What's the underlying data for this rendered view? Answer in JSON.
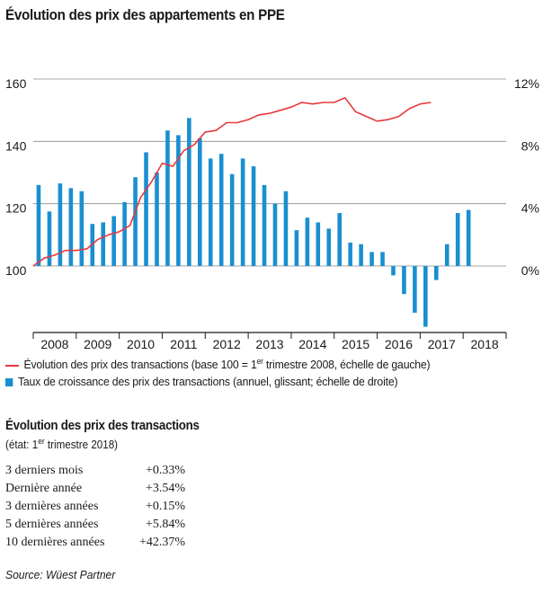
{
  "title": "Évolution des prix des appartements en PPE",
  "chart_data": {
    "type": "bar+line",
    "x_labels": [
      "2008",
      "2009",
      "2010",
      "2011",
      "2012",
      "2013",
      "2014",
      "2015",
      "2016",
      "2017",
      "2018"
    ],
    "y_left": {
      "ticks": [
        "160",
        "140",
        "120",
        "100"
      ],
      "range": [
        80,
        160
      ]
    },
    "y_right": {
      "ticks": [
        "12%",
        "8%",
        "4%",
        "0%"
      ],
      "range": [
        -4,
        12
      ]
    },
    "colors": {
      "line": "#e8383b",
      "bar": "#1a8fd0"
    },
    "series": [
      {
        "name": "Évolution des prix des transactions (base 100 = 1er trimestre 2008, échelle de gauche)",
        "kind": "line",
        "axis": "left",
        "values": [
          100,
          102.5,
          103.5,
          105,
          105,
          105.5,
          108.5,
          110,
          111,
          113,
          122,
          127,
          133,
          132,
          137,
          139,
          143,
          143.5,
          146,
          146,
          147,
          148.5,
          149,
          150,
          151,
          152.5,
          152,
          152.5,
          152.5,
          154,
          149.5,
          148,
          146.5,
          147,
          148,
          150.5,
          152,
          152.5
        ]
      },
      {
        "name": "Taux de croissance des prix des transactions (annuel, glissant; échelle de droite)",
        "kind": "bar",
        "axis": "right",
        "values": [
          5.2,
          3.5,
          5.3,
          5.0,
          4.8,
          2.7,
          2.8,
          3.2,
          4.1,
          5.7,
          7.3,
          6.0,
          8.7,
          8.4,
          9.5,
          8.2,
          6.9,
          7.2,
          5.9,
          6.9,
          6.4,
          5.2,
          4.0,
          4.8,
          2.3,
          3.1,
          2.8,
          2.4,
          3.4,
          1.5,
          1.4,
          0.9,
          0.9,
          -0.6,
          -1.8,
          -3.0,
          -3.9,
          -0.9,
          1.4,
          3.4,
          3.6
        ]
      }
    ]
  },
  "legend": {
    "line_text": "Évolution des prix des transactions (base 100 = 1",
    "line_sup": "er",
    "line_rest": " trimestre 2008, échelle de gauche)",
    "bar_text": "Taux de croissance des prix des transactions (annuel, glissant; échelle de droite)"
  },
  "transactions": {
    "title": "Évolution des prix des transactions",
    "subtitle_pre": "(état: 1",
    "subtitle_sup": "er",
    "subtitle_post": " trimestre 2018)",
    "rows": [
      {
        "label": "3 derniers mois",
        "value": "+0.33%"
      },
      {
        "label": "Dernière année",
        "value": "+3.54%"
      },
      {
        "label": "3 dernières années",
        "value": "+0.15%"
      },
      {
        "label": "5 dernières années",
        "value": "+5.84%"
      },
      {
        "label": "10 dernières années",
        "value": "+42.37%"
      }
    ]
  },
  "source": "Source: Wüest Partner"
}
